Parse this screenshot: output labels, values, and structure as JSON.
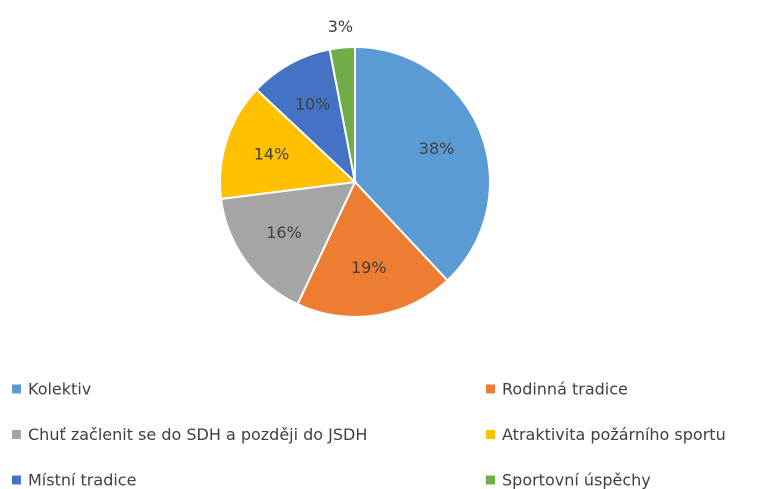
{
  "chart_data": {
    "type": "pie",
    "categories": [
      "Kolektiv",
      "Rodinná tradice",
      "Chuť začlenit se do SDH a později do JSDH",
      "Atraktivita požárního sportu",
      "Místní tradice",
      "Sportovní úspěchy"
    ],
    "values": [
      38,
      19,
      16,
      14,
      10,
      3
    ],
    "value_labels": [
      "38%",
      "19%",
      "16%",
      "14%",
      "10%",
      "3%"
    ],
    "colors": [
      "#5b9bd5",
      "#ed7d31",
      "#a5a5a5",
      "#ffc000",
      "#4472c4",
      "#70ad47"
    ],
    "legend": "bottom"
  }
}
